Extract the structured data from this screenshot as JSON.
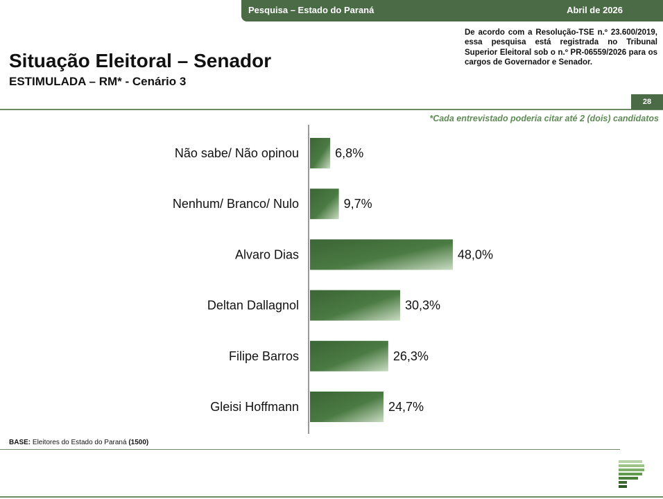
{
  "banner": {
    "survey": "Pesquisa – Estado do Paraná",
    "date": "Abril de 2026"
  },
  "legal_note": "De acordo com a Resolução-TSE n.º 23.600/2019, essa pesquisa está registrada no Tribunal Superior Eleitoral sob o n.º PR-06559/2026 para os cargos de Governador e Senador.",
  "page": {
    "title": "Situação Eleitoral – Senador",
    "subtitle": "ESTIMULADA – RM* - Cenário 3",
    "number": "28",
    "footnote": "*Cada entrevistado poderia citar até 2 (dois) candidatos"
  },
  "base": {
    "label": "BASE:",
    "text": "Eleitores do Estado do Paraná",
    "n": "(1500)"
  },
  "colors": {
    "brand_green": "#4a6b45",
    "bar_dark": "#3f6a38",
    "bar_light": "#c9dcc2",
    "footnote_green": "#5e8a55"
  },
  "chart_data": {
    "type": "bar",
    "orientation": "horizontal",
    "categories": [
      "Não sabe/ Não opinou",
      "Nenhum/ Branco/ Nulo",
      "Alvaro Dias",
      "Deltan Dallagnol",
      "Filipe Barros",
      "Gleisi Hoffmann"
    ],
    "values": [
      6.8,
      9.7,
      48.0,
      30.3,
      26.3,
      24.7
    ],
    "value_labels": [
      "6,8%",
      "9,7%",
      "48,0%",
      "30,3%",
      "26,3%",
      "24,7%"
    ],
    "unit": "%",
    "xlim": [
      0,
      100
    ],
    "grid": false,
    "legend": "none"
  }
}
